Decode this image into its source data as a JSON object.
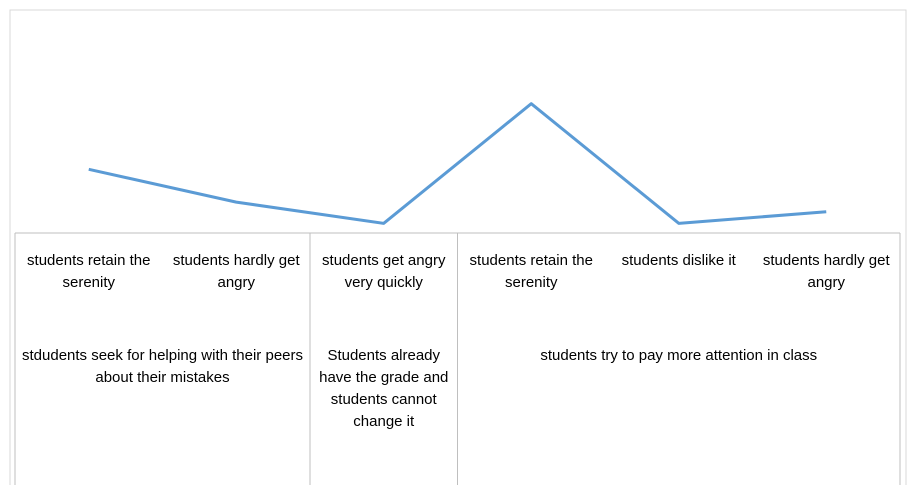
{
  "chart_data": {
    "type": "line",
    "groups": [
      {
        "name": "stdudents seek for  helping with their peers about their mistakes",
        "categories": [
          "students retain the serenity",
          "students hardly get angry"
        ]
      },
      {
        "name": "Students already have the grade and students cannot change it",
        "categories": [
          "students get angry very quickly"
        ]
      },
      {
        "name": "students try to pay more attention in class",
        "categories": [
          "students retain the serenity",
          "students dislike it",
          "students hardly get angry"
        ]
      }
    ],
    "values": [
      33,
      16,
      5,
      67,
      5,
      11
    ],
    "ylim": [
      0,
      100
    ],
    "color": "#5b9bd5"
  }
}
